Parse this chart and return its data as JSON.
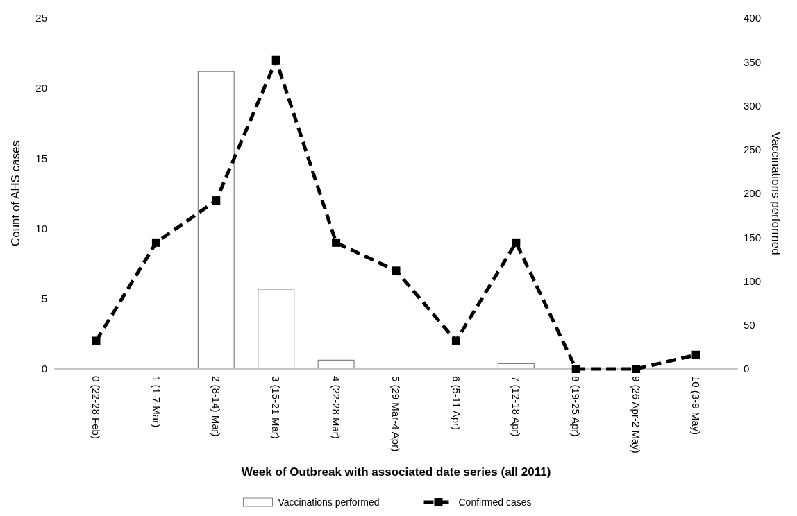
{
  "chart_data": {
    "type": "bar",
    "xlabel": "Week of Outbreak with associated date series (all 2011)",
    "ylabel": "Count of AHS cases",
    "y2label": "Vaccinations performed",
    "categories": [
      "0 (22-28 Feb)",
      "1 (1-7 Mar)",
      "2 (8-14) Mar)",
      "3 (15-21 Mar)",
      "4 (22-28 Mar)",
      "5 (29 Mar-4 Apr)",
      "6 (5-11 Apr)",
      "7 (12-18 Apr)",
      "8 (19-25 Apr)",
      "9 (26 Apr-2 May)",
      "10 (3-9 May)"
    ],
    "series": [
      {
        "name": "Vaccinations performed",
        "axis": "y2",
        "color": "#ffffff",
        "values": [
          null,
          null,
          339,
          91,
          10,
          null,
          null,
          6,
          null,
          null,
          null
        ]
      },
      {
        "name": "Confirmed cases",
        "type": "line",
        "color": "#000000",
        "marker": "square",
        "line_style": "dashed",
        "values": [
          2,
          9,
          12,
          22,
          9,
          7,
          2,
          9,
          0,
          0,
          1
        ]
      }
    ],
    "ylim": [
      0,
      25
    ],
    "yticks": [
      0,
      5,
      10,
      15,
      20,
      25
    ],
    "y2lim": [
      0,
      400
    ],
    "y2ticks": [
      0,
      50,
      100,
      150,
      200,
      250,
      300,
      350,
      400
    ],
    "grid": false,
    "legend": "bottom"
  }
}
